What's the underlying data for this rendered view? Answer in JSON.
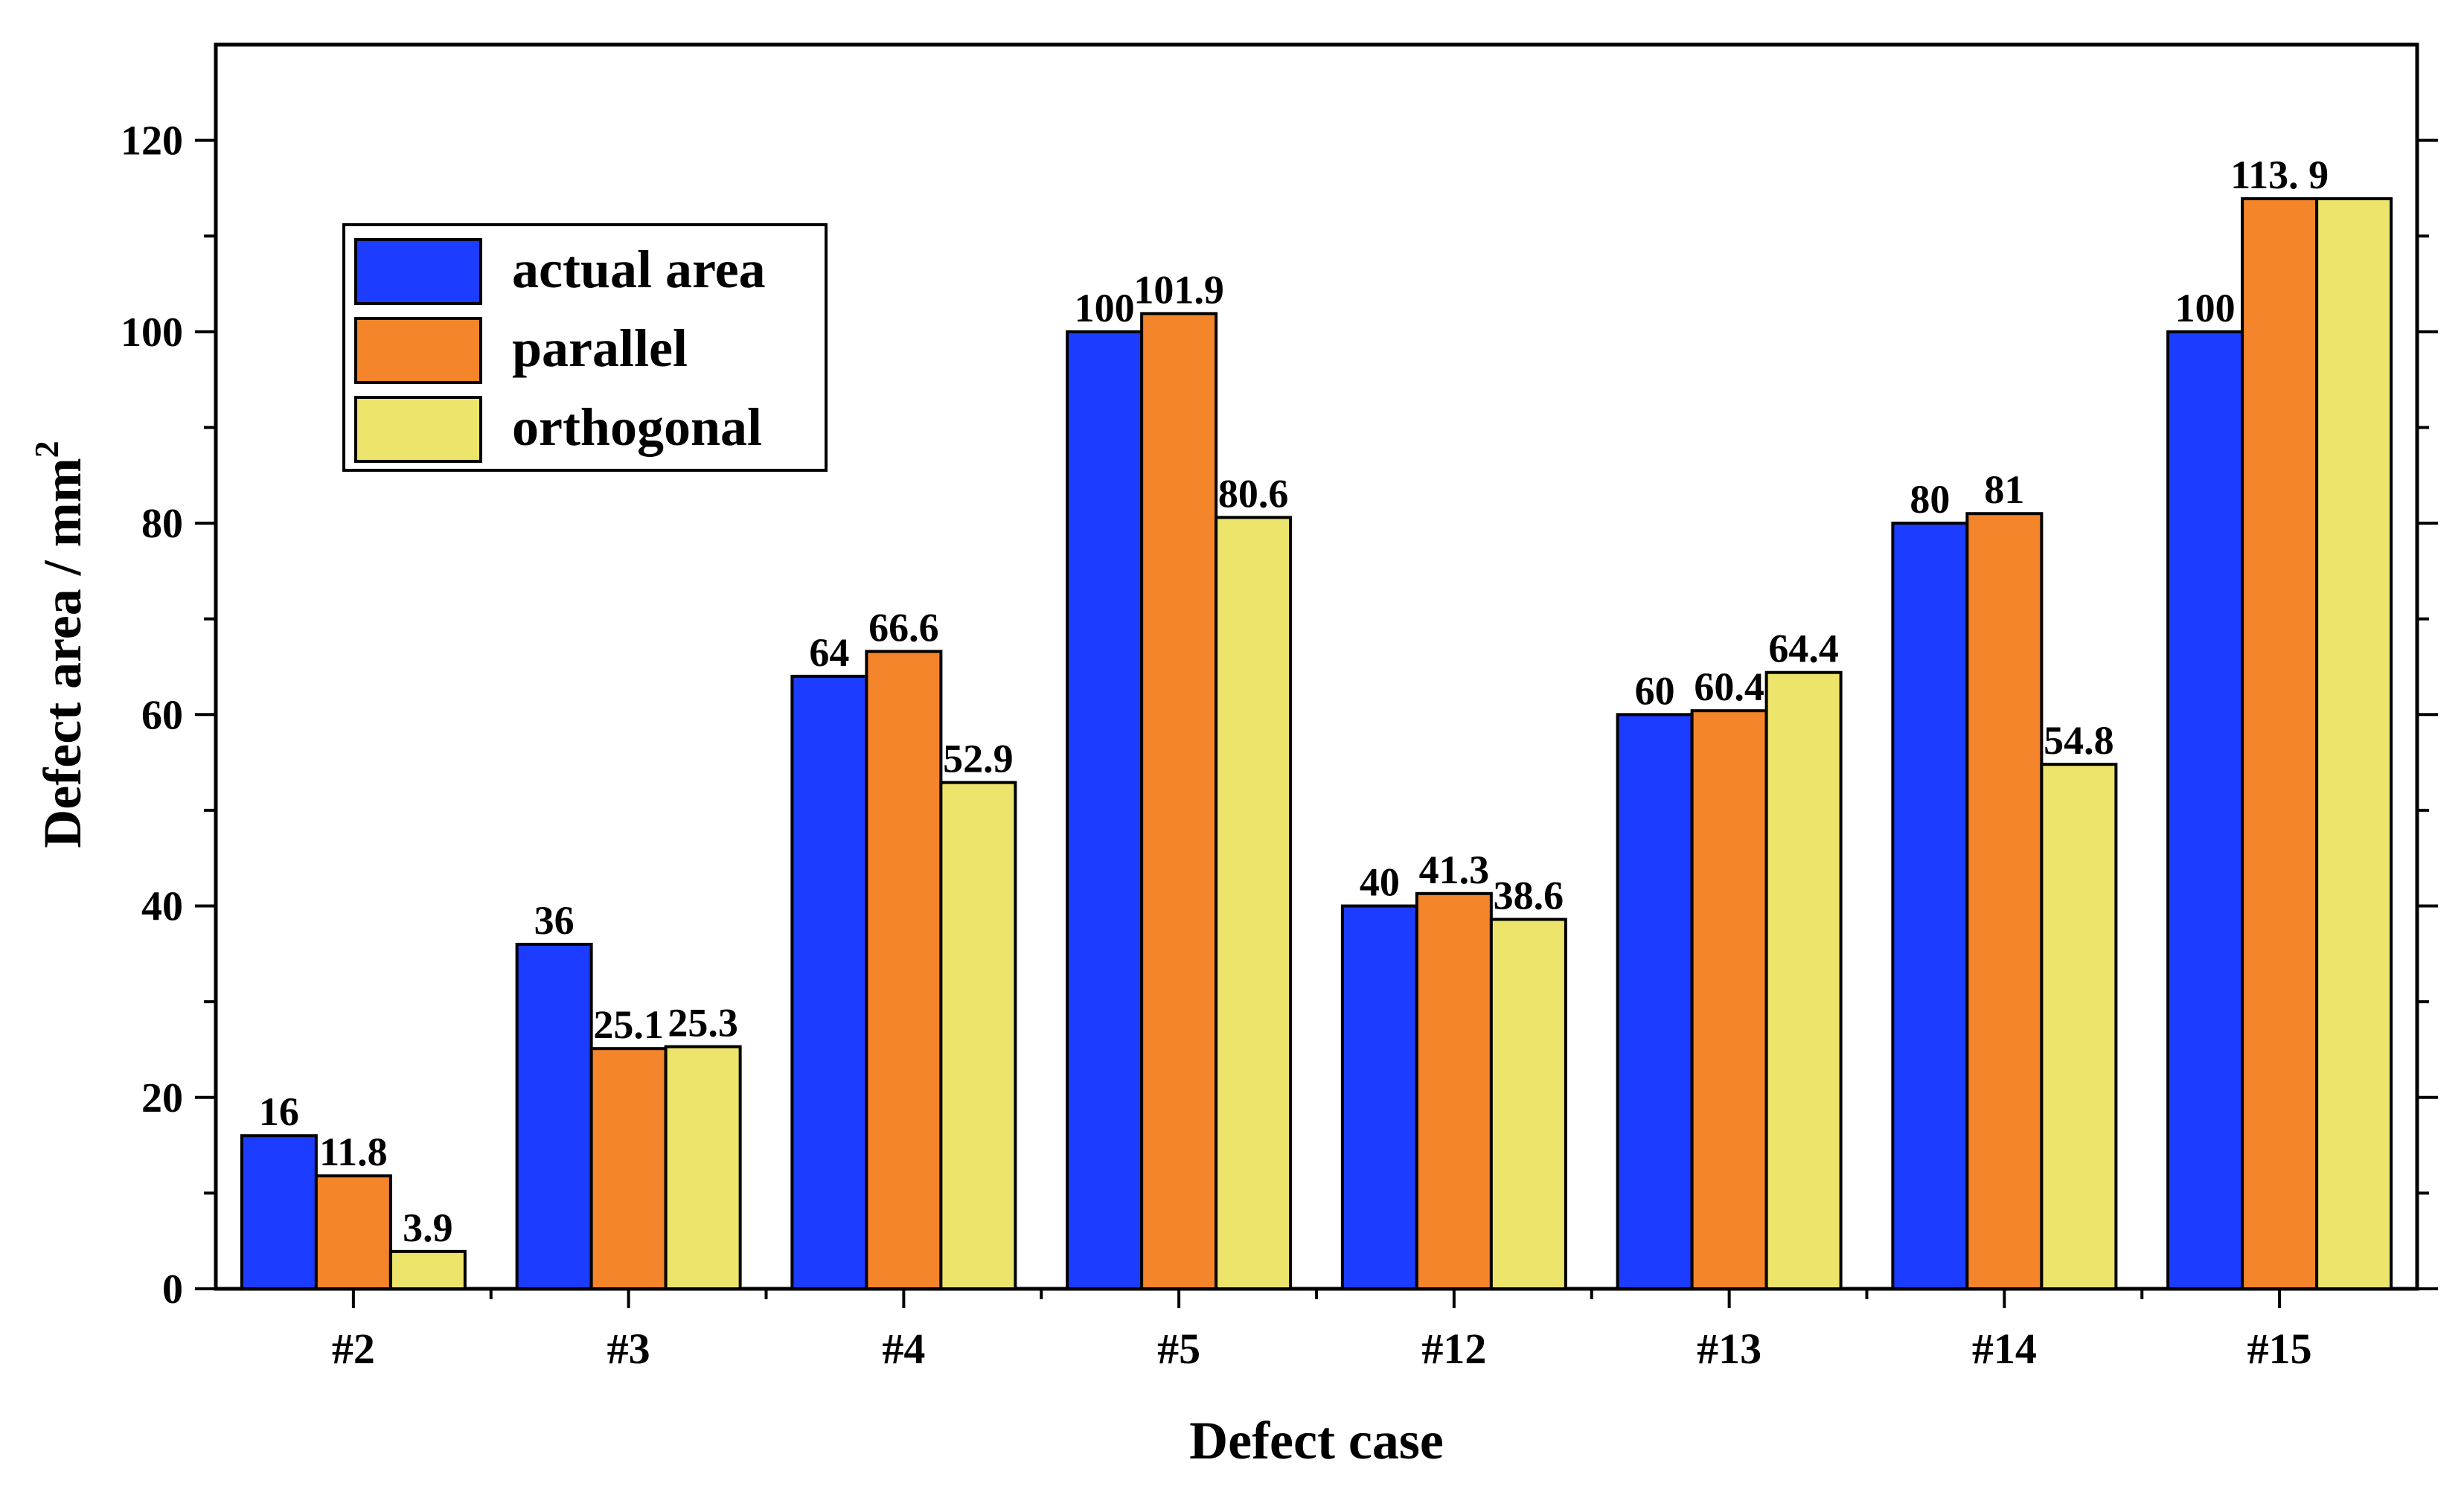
{
  "chart_data": {
    "type": "bar",
    "title": "",
    "xlabel": "Defect case",
    "ylabel_main": "Defect area / mm",
    "ylabel_sup": "2",
    "categories": [
      "#2",
      "#3",
      "#4",
      "#5",
      "#12",
      "#13",
      "#14",
      "#15"
    ],
    "series": [
      {
        "name": "actual area",
        "color": "#1c3cff",
        "values": [
          16,
          36,
          64,
          100,
          40,
          60,
          80,
          100
        ],
        "labels": [
          "16",
          "36",
          "64",
          "100",
          "40",
          "60",
          "80",
          "100"
        ]
      },
      {
        "name": "parallel",
        "color": "#f5852a",
        "values": [
          11.8,
          25.1,
          66.6,
          101.9,
          41.3,
          60.4,
          81,
          113.9
        ],
        "labels": [
          "11.8",
          "25.1",
          "66.6",
          "101.9",
          "41.3",
          "60.4",
          "81",
          "113. 9"
        ]
      },
      {
        "name": "orthogonal",
        "color": "#ede56b",
        "values": [
          3.9,
          25.3,
          52.9,
          80.6,
          38.6,
          64.4,
          54.8,
          113.9
        ],
        "labels": [
          "3.9",
          "25.3",
          "52.9",
          "80.6",
          "38.6",
          "64.4",
          "54.8",
          ""
        ]
      }
    ],
    "ylim": [
      0,
      130
    ],
    "yticks": [
      0,
      20,
      40,
      60,
      80,
      100,
      120
    ],
    "yticks_minor": [
      10,
      30,
      50,
      70,
      90,
      110
    ],
    "legend_position": "top-left",
    "grid": false
  }
}
